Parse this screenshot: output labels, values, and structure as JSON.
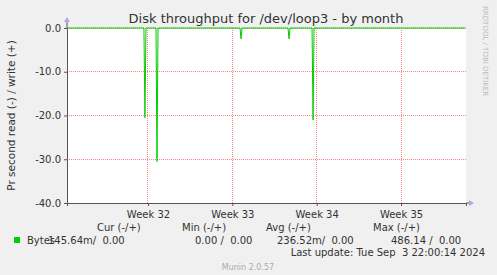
{
  "chart_data": {
    "type": "line",
    "title": "Disk throughput for /dev/loop3 - by month",
    "y_label": "Pr second read (-) / write (+)",
    "watermark": "RRDTOOL / TOBI OETIKER",
    "x": [
      31.04,
      31.952,
      31.964,
      31.976,
      32.095,
      32.107,
      32.119,
      33.091,
      33.103,
      33.115,
      33.66,
      33.672,
      33.684,
      33.945,
      33.957,
      33.969,
      35.76
    ],
    "series": [
      {
        "name": "Bytes",
        "color": "#00cc00",
        "values": [
          0,
          0,
          -20.5,
          0,
          0,
          -30.5,
          0,
          0,
          -2.5,
          0,
          0,
          -2.5,
          0,
          0,
          -21,
          0,
          0
        ],
        "stats": [
          "145.64m/  0.00",
          "0.00 /  0.00",
          "236.52m/  0.00",
          "486.14 /  0.00"
        ]
      }
    ],
    "stat_headers": [
      "Cur (-/+)",
      "Min (-/+)",
      "Avg (-/+)",
      "Max (-/+)"
    ],
    "last_update": "Last update: Tue Sep  3 22:00:14 2024",
    "footer": "Munin 2.0.57",
    "xlim": [
      31.04,
      35.77
    ],
    "xticks": [
      {
        "value": 32,
        "label": "Week 32"
      },
      {
        "value": 33,
        "label": "Week 33"
      },
      {
        "value": 34,
        "label": "Week 34"
      },
      {
        "value": 35,
        "label": "Week 35"
      }
    ],
    "ylim": [
      -40,
      0
    ],
    "yticks": [
      {
        "value": 0,
        "label": "0.0"
      },
      {
        "value": -10,
        "label": "-10.0"
      },
      {
        "value": -20,
        "label": "-20.0"
      },
      {
        "value": -30,
        "label": "-30.0"
      },
      {
        "value": -40,
        "label": "-40.0"
      }
    ],
    "grid": true
  }
}
